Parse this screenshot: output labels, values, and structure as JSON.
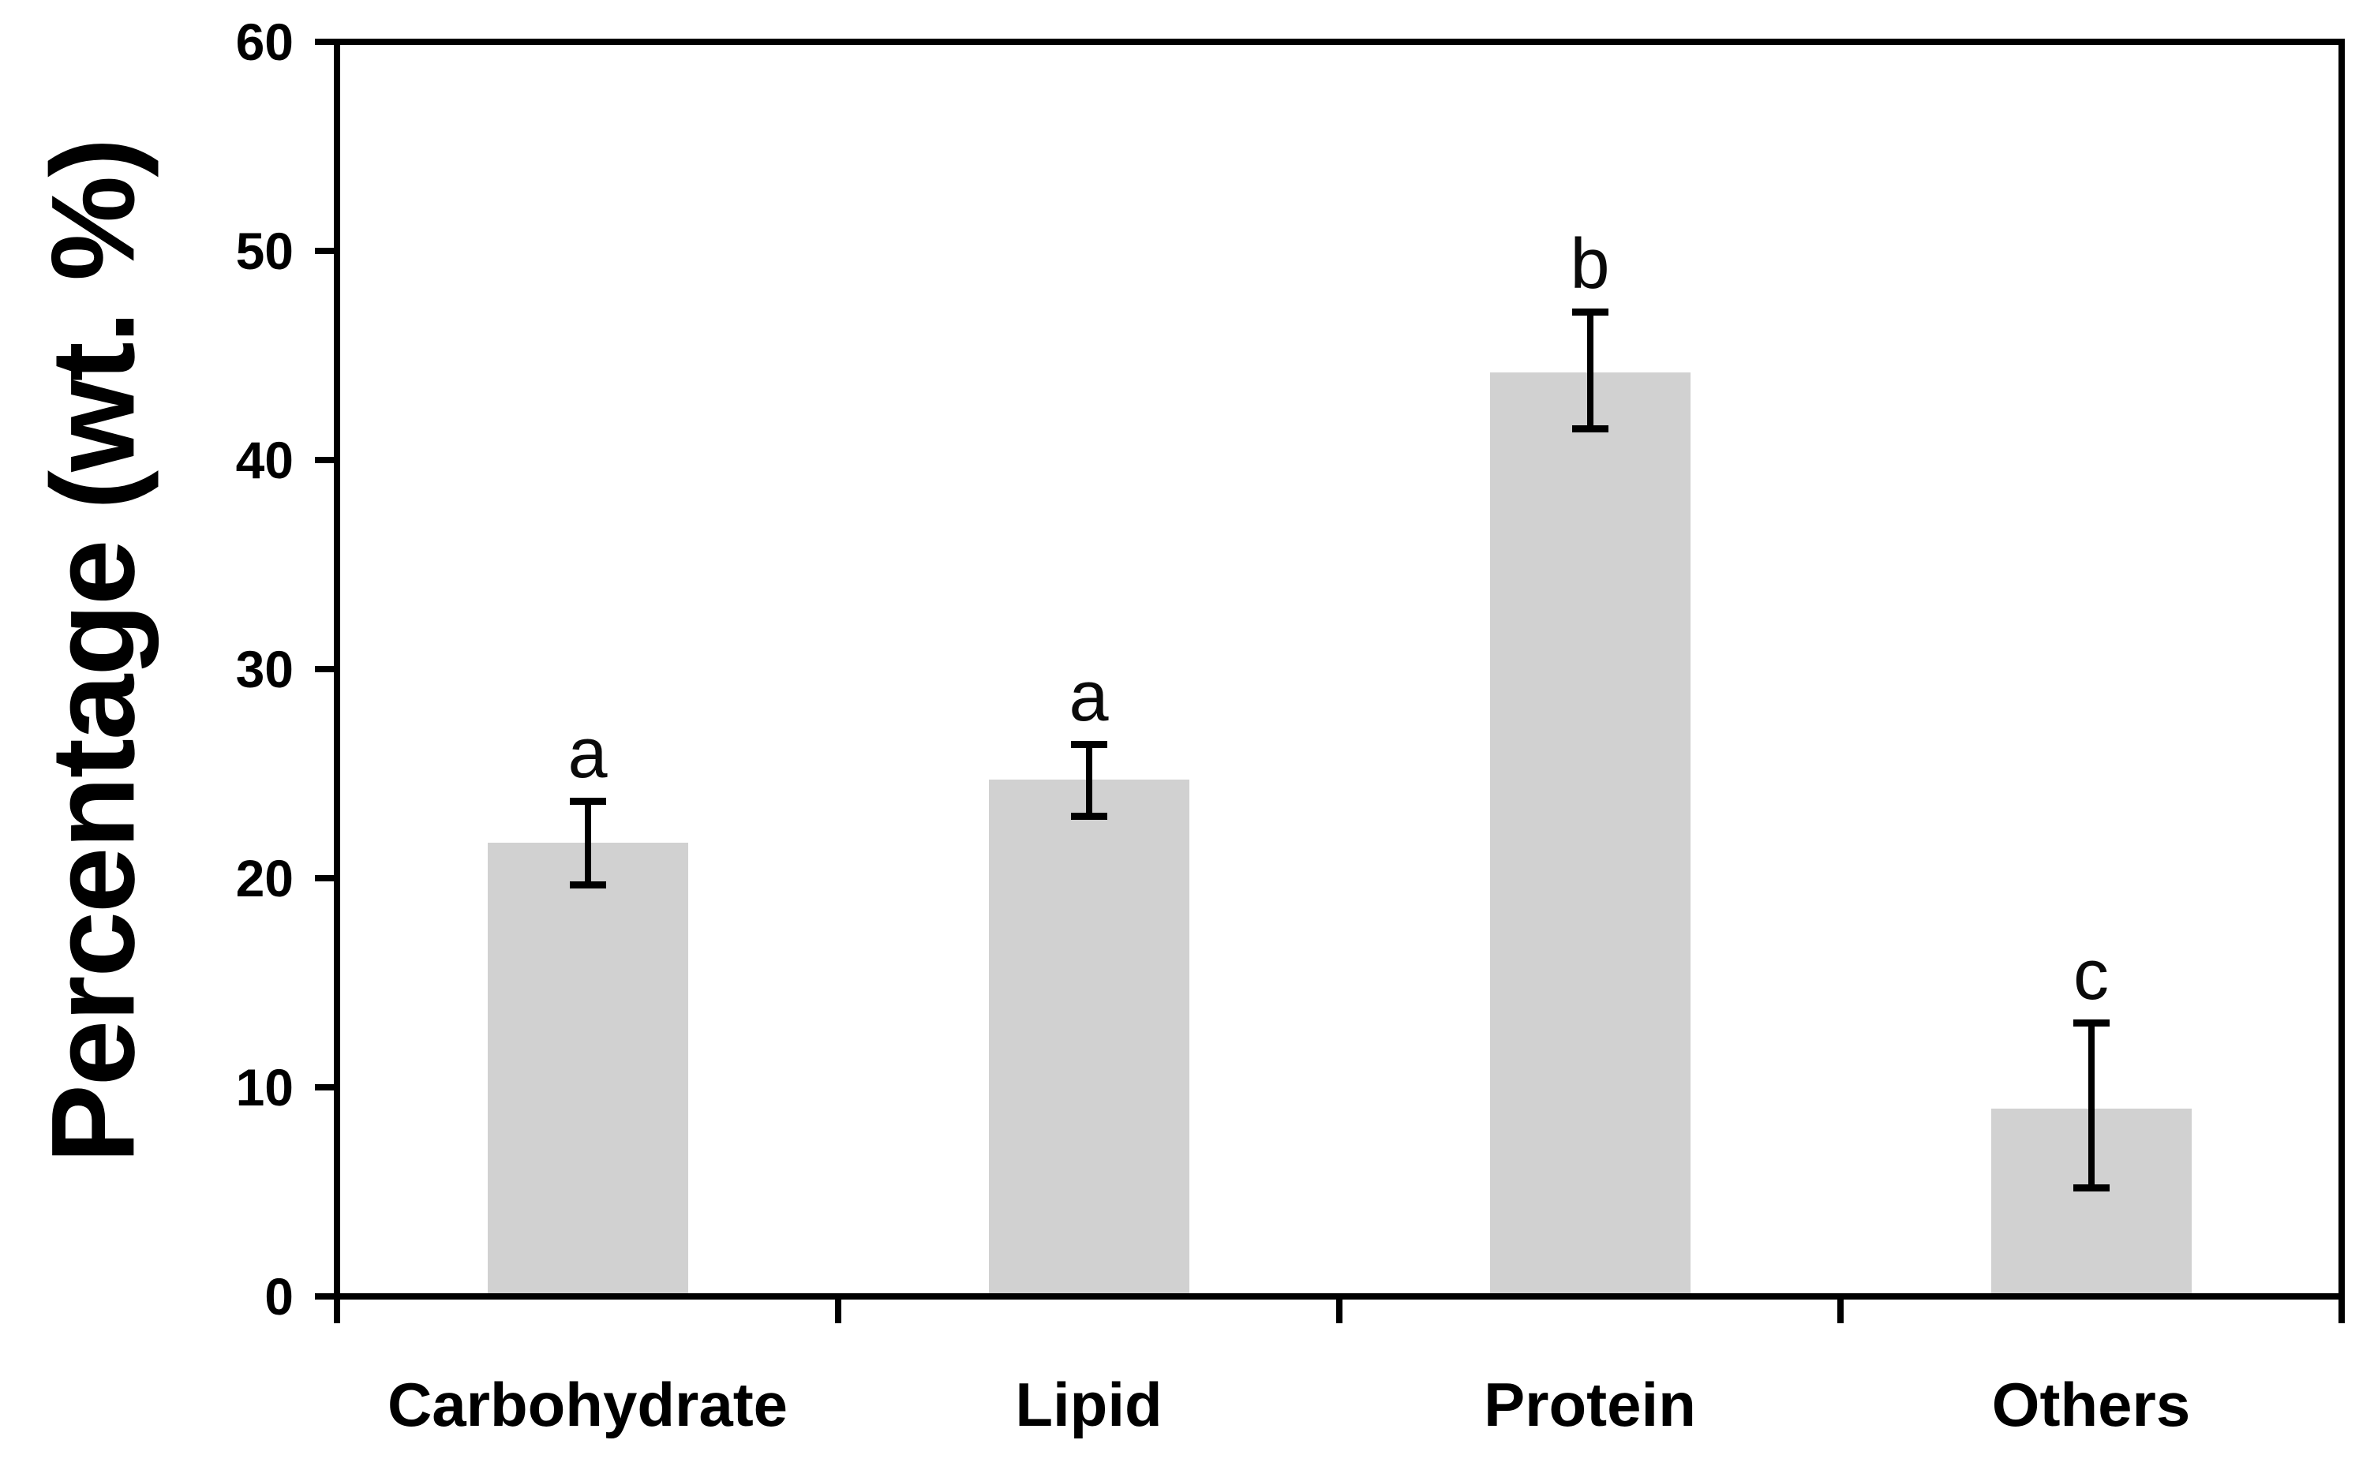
{
  "figure": {
    "kind": "scientific bar chart",
    "background": "#ffffff"
  },
  "chart_data": {
    "type": "bar",
    "title": "",
    "xlabel": "",
    "ylabel": "Percentage (wt. %)",
    "ylim": [
      0,
      60
    ],
    "yticks": [
      0,
      10,
      20,
      30,
      40,
      50,
      60
    ],
    "categories": [
      "Carbohydrate",
      "Lipid",
      "Protein",
      "Others"
    ],
    "values": [
      21.7,
      24.7,
      44.2,
      9.0
    ],
    "error_plus": [
      2.0,
      1.7,
      2.9,
      4.1
    ],
    "error_minus": [
      2.0,
      1.7,
      2.7,
      3.8
    ],
    "significance_letters": [
      "a",
      "a",
      "b",
      "c"
    ],
    "grid": "off",
    "legend": "none",
    "bar_color": "#d1d1d1",
    "axis_color": "#000000",
    "text_color": "#000000",
    "error_bar_color": "#000000"
  }
}
